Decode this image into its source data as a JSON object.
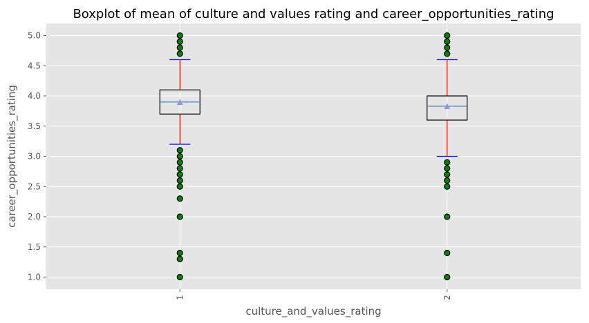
{
  "chart_data": {
    "type": "boxplot",
    "title": "Boxplot of  mean of culture and values rating and career_opportunities_rating",
    "xlabel": "culture_and_values_rating",
    "ylabel": "career_opportunities_rating",
    "ylim": [
      0.8,
      5.2
    ],
    "yticks": [
      "1.0",
      "1.5",
      "2.0",
      "2.5",
      "3.0",
      "3.5",
      "4.0",
      "4.5",
      "5.0"
    ],
    "ytick_values": [
      1.0,
      1.5,
      2.0,
      2.5,
      3.0,
      3.5,
      4.0,
      4.5,
      5.0
    ],
    "xtick_rotation_deg": 90,
    "grid": true,
    "style": "ggplot",
    "colors": {
      "background": "#e5e5e5",
      "grid": "#ffffff",
      "box_edge": "#000000",
      "whisker": "#ff0000",
      "cap": "#0000ff",
      "median": "#5b8fd6",
      "mean_marker": "#9b8fe0",
      "flier_fill": "#008000",
      "flier_edge": "#000000"
    },
    "boxes": [
      {
        "category": "1",
        "q1": 3.7,
        "median": 3.9,
        "q3": 4.1,
        "mean": 3.9,
        "whisker_low": 3.2,
        "whisker_high": 4.6,
        "fliers": [
          1.0,
          1.3,
          1.4,
          2.0,
          2.3,
          2.5,
          2.6,
          2.7,
          2.8,
          2.9,
          3.0,
          3.1,
          4.7,
          4.8,
          4.9,
          5.0
        ]
      },
      {
        "category": "2",
        "q1": 3.6,
        "median": 3.83,
        "q3": 4.0,
        "mean": 3.83,
        "whisker_low": 3.0,
        "whisker_high": 4.6,
        "fliers": [
          1.0,
          1.4,
          2.0,
          2.5,
          2.6,
          2.7,
          2.8,
          2.9,
          4.7,
          4.8,
          4.9,
          5.0
        ]
      }
    ]
  }
}
